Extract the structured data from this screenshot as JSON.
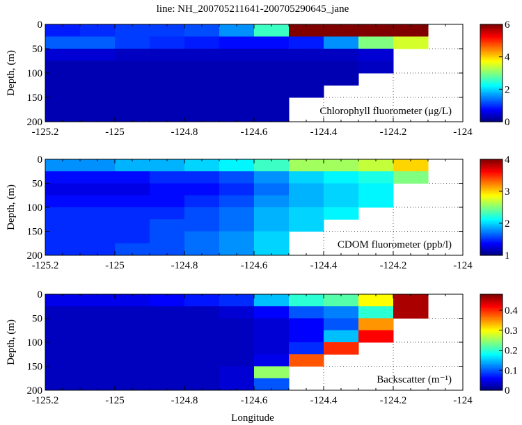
{
  "chart_data": {
    "type": "heatmap",
    "title": "line: NH_200705211641-200705290645_jane",
    "xlabel": "Longitude",
    "xlim": [
      -125.2,
      -124
    ],
    "xticks": [
      "-125.2",
      "-125",
      "-124.8",
      "-124.6",
      "-124.4",
      "-124.2",
      "-124"
    ],
    "xtick_values": [
      -125.2,
      -125,
      -124.8,
      -124.6,
      -124.4,
      -124.2,
      -124
    ],
    "grid": "dotted",
    "lon_edges": [
      -125.2,
      -125.1,
      -125.0,
      -124.9,
      -124.8,
      -124.7,
      -124.6,
      -124.5,
      -124.4,
      -124.3,
      -124.2,
      -124.1
    ],
    "depth_edges": [
      0,
      25,
      50,
      75,
      100,
      125,
      150,
      175,
      200
    ],
    "panels": [
      {
        "ylabel": "Depth, (m)",
        "ylim": [
          200,
          0
        ],
        "yticks": [
          "0",
          "50",
          "100",
          "150",
          "200"
        ],
        "ytick_values": [
          0,
          50,
          100,
          150,
          200
        ],
        "label": "Chlorophyll fluorometer (μg/L)",
        "colormap": "jet",
        "clim": [
          0,
          6
        ],
        "cticks": [
          "0",
          "2",
          "4",
          "6"
        ],
        "ctick_values": [
          0,
          2,
          4,
          6
        ],
        "values": [
          [
            0.9,
            1.0,
            1.1,
            1.1,
            1.2,
            1.6,
            2.6,
            6.0,
            6.0,
            6.0,
            6.0
          ],
          [
            1.3,
            1.3,
            1.1,
            1.0,
            0.9,
            0.8,
            0.8,
            0.9,
            1.6,
            3.0,
            3.5
          ],
          [
            0.5,
            0.5,
            0.4,
            0.4,
            0.4,
            0.4,
            0.4,
            0.4,
            0.4,
            0.5,
            null
          ],
          [
            0.3,
            0.3,
            0.3,
            0.3,
            0.3,
            0.3,
            0.3,
            0.3,
            0.3,
            0.4,
            null
          ],
          [
            0.3,
            0.3,
            0.3,
            0.3,
            0.3,
            0.3,
            0.3,
            0.3,
            0.3,
            null,
            null
          ],
          [
            0.3,
            0.3,
            0.3,
            0.3,
            0.3,
            0.3,
            0.3,
            0.3,
            null,
            null,
            null
          ],
          [
            0.3,
            0.3,
            0.3,
            0.3,
            0.3,
            0.3,
            0.3,
            null,
            null,
            null,
            null
          ],
          [
            0.3,
            0.3,
            0.3,
            0.3,
            0.3,
            0.3,
            0.3,
            null,
            null,
            null,
            null
          ]
        ]
      },
      {
        "ylabel": "Depth, (m)",
        "ylim": [
          200,
          0
        ],
        "yticks": [
          "0",
          "50",
          "100",
          "150",
          "200"
        ],
        "ytick_values": [
          0,
          50,
          100,
          150,
          200
        ],
        "label": "CDOM fluorometer (ppb/l)",
        "colormap": "jet",
        "clim": [
          1,
          4
        ],
        "cticks": [
          "1",
          "2",
          "3",
          "4"
        ],
        "ctick_values": [
          1,
          2,
          3,
          4
        ],
        "values": [
          [
            1.8,
            1.8,
            1.9,
            1.9,
            2.0,
            2.1,
            2.3,
            2.6,
            2.6,
            2.7,
            3.0
          ],
          [
            1.4,
            1.4,
            1.4,
            1.5,
            1.5,
            1.6,
            1.8,
            2.0,
            2.1,
            2.2,
            2.5
          ],
          [
            1.3,
            1.3,
            1.3,
            1.4,
            1.4,
            1.5,
            1.7,
            1.9,
            2.0,
            2.1,
            null
          ],
          [
            1.4,
            1.4,
            1.4,
            1.4,
            1.5,
            1.6,
            1.8,
            1.9,
            2.0,
            2.1,
            null
          ],
          [
            1.5,
            1.5,
            1.5,
            1.5,
            1.6,
            1.7,
            1.9,
            2.0,
            2.1,
            null,
            null
          ],
          [
            1.5,
            1.5,
            1.5,
            1.6,
            1.6,
            1.7,
            1.9,
            2.0,
            null,
            null,
            null
          ],
          [
            1.5,
            1.5,
            1.5,
            1.6,
            1.7,
            1.8,
            2.0,
            null,
            null,
            null,
            null
          ],
          [
            1.5,
            1.5,
            1.6,
            1.6,
            1.7,
            1.8,
            2.0,
            null,
            null,
            null,
            null
          ]
        ]
      },
      {
        "ylabel": "Depth, (m)",
        "ylim": [
          200,
          0
        ],
        "yticks": [
          "0",
          "50",
          "100",
          "150",
          "200"
        ],
        "ytick_values": [
          0,
          50,
          100,
          150,
          200
        ],
        "label": "Backscatter (m⁻¹)",
        "colormap": "jet",
        "clim": [
          0,
          0.48
        ],
        "cticks": [
          "0",
          "0.1",
          "0.2",
          "0.3",
          "0.4"
        ],
        "ctick_values": [
          0,
          0.1,
          0.2,
          0.3,
          0.4
        ],
        "values": [
          [
            0.05,
            0.05,
            0.05,
            0.06,
            0.07,
            0.08,
            0.15,
            0.2,
            0.22,
            0.3,
            0.46
          ],
          [
            0.03,
            0.03,
            0.03,
            0.03,
            0.03,
            0.04,
            0.06,
            0.1,
            0.12,
            0.2,
            0.46
          ],
          [
            0.03,
            0.03,
            0.03,
            0.03,
            0.03,
            0.03,
            0.04,
            0.06,
            0.1,
            0.35,
            null
          ],
          [
            0.03,
            0.03,
            0.03,
            0.03,
            0.03,
            0.03,
            0.04,
            0.06,
            0.15,
            0.42,
            null
          ],
          [
            0.03,
            0.03,
            0.03,
            0.03,
            0.03,
            0.03,
            0.04,
            0.08,
            0.4,
            null,
            null
          ],
          [
            0.03,
            0.03,
            0.03,
            0.03,
            0.03,
            0.03,
            0.05,
            0.38,
            null,
            null,
            null
          ],
          [
            0.03,
            0.03,
            0.03,
            0.03,
            0.03,
            0.04,
            0.25,
            null,
            null,
            null,
            null
          ],
          [
            0.03,
            0.03,
            0.03,
            0.03,
            0.03,
            0.04,
            0.1,
            null,
            null,
            null,
            null
          ]
        ]
      }
    ]
  }
}
